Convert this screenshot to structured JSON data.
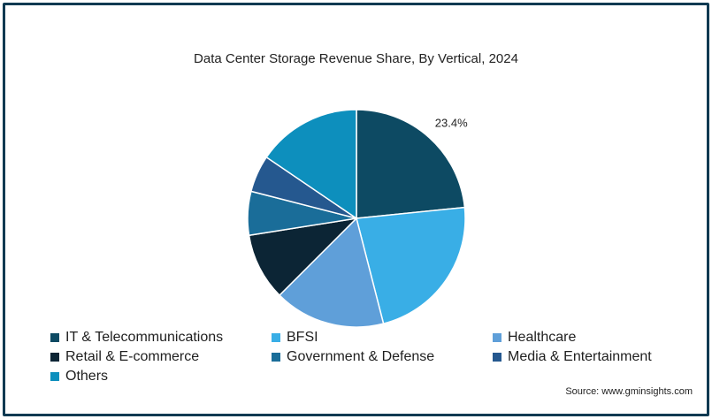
{
  "source": "Source: www.gminsights.com",
  "chart_data": {
    "type": "pie",
    "title": "Data Center Storage Revenue Share, By Vertical, 2024",
    "slices": [
      {
        "name": "IT & Telecommunications",
        "value": 23.4,
        "label": "23.4%",
        "color": "#0d4a63"
      },
      {
        "name": "BFSI",
        "value": 22.6,
        "label": "",
        "color": "#39aee6"
      },
      {
        "name": "Healthcare",
        "value": 16.5,
        "label": "",
        "color": "#5f9fd9"
      },
      {
        "name": "Retail & E-commerce",
        "value": 10.0,
        "label": "",
        "color": "#0c2535"
      },
      {
        "name": "Government & Defense",
        "value": 6.5,
        "label": "",
        "color": "#1a6d99"
      },
      {
        "name": "Media & Entertainment",
        "value": 5.5,
        "label": "",
        "color": "#25588f"
      },
      {
        "name": "Others",
        "value": 15.5,
        "label": "",
        "color": "#0d8fbd"
      }
    ],
    "legend_position": "bottom-left"
  }
}
